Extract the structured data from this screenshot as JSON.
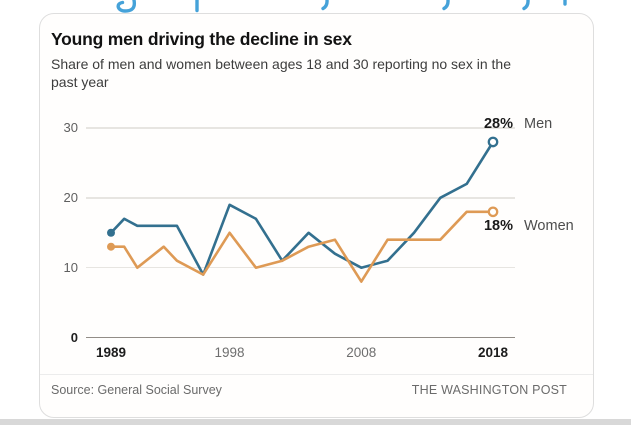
{
  "page": {
    "cropped_headline_fragments": "illegible blue headline text cropped at top edge (only letter descenders visible)"
  },
  "chart_data": {
    "type": "line",
    "title": "Young men driving the decline in sex",
    "subtitle": "Share of men and women between ages 18 and 30 reporting no sex in the past year",
    "x": [
      1989,
      1990,
      1991,
      1993,
      1994,
      1996,
      1998,
      2000,
      2002,
      2004,
      2006,
      2008,
      2010,
      2012,
      2014,
      2016,
      2018
    ],
    "xlim": [
      1989,
      2018
    ],
    "ylim": [
      0,
      30
    ],
    "yticks": [
      0,
      10,
      20,
      30
    ],
    "xticks": [
      1989,
      1998,
      2008,
      2018
    ],
    "grid": "horizontal",
    "legend_position": "end-of-line labels at right",
    "series": [
      {
        "name": "Men",
        "color": "#33708f",
        "end_label": "28%",
        "values": [
          15,
          17,
          16,
          16,
          16,
          9,
          19,
          17,
          11,
          15,
          12,
          10,
          11,
          15,
          20,
          22,
          28
        ]
      },
      {
        "name": "Women",
        "color": "#de9a55",
        "end_label": "18%",
        "values": [
          13,
          13,
          10,
          13,
          11,
          9,
          15,
          10,
          11,
          13,
          14,
          8,
          14,
          14,
          14,
          18,
          18
        ]
      }
    ]
  },
  "footer": {
    "source": "Source: General Social Survey",
    "attribution": "THE WASHINGTON POST"
  }
}
